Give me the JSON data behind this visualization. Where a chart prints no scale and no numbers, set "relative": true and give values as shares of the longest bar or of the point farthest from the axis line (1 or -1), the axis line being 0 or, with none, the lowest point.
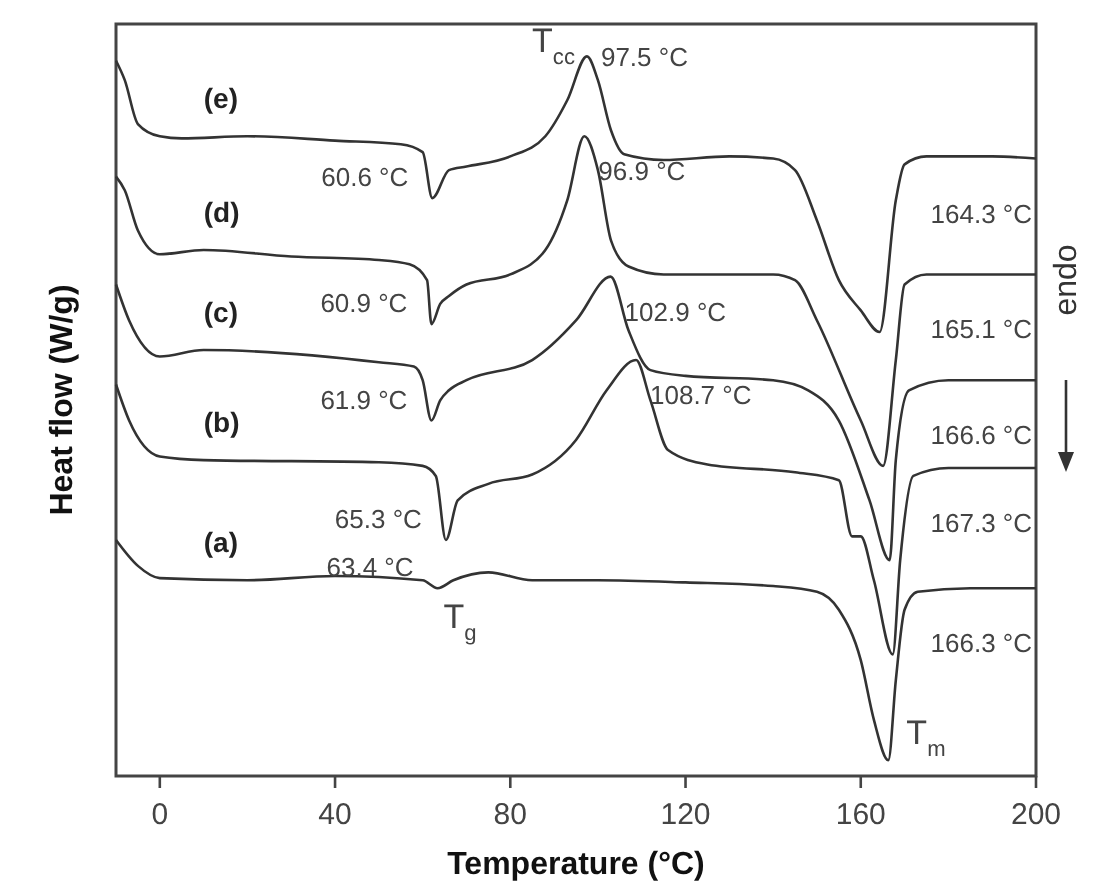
{
  "chart_data": {
    "type": "line",
    "relative": true,
    "xlabel": "Temperature (°C)",
    "ylabel": "Heat flow (W/g)",
    "xlim": [
      -10,
      200
    ],
    "xticks": [
      0,
      40,
      80,
      120,
      160,
      200
    ],
    "series": [
      {
        "name": "(e)",
        "color": "#333333",
        "x": [
          -10,
          -8,
          -5,
          0,
          5,
          20,
          40,
          55,
          60,
          62.2,
          66,
          70,
          80,
          88,
          93,
          97.5,
          100,
          103,
          106,
          115,
          130,
          140,
          145,
          150,
          155,
          160,
          164.3,
          168,
          170,
          175,
          190,
          200
        ],
        "values": [
          0.994,
          0.967,
          0.906,
          0.889,
          0.886,
          0.889,
          0.883,
          0.878,
          0.867,
          0.803,
          0.842,
          0.847,
          0.861,
          0.889,
          0.939,
          1,
          0.967,
          0.897,
          0.864,
          0.856,
          0.861,
          0.858,
          0.842,
          0.772,
          0.689,
          0.647,
          0.617,
          0.8,
          0.85,
          0.861,
          0.861,
          0.858
        ]
      },
      {
        "name": "(d)",
        "color": "#333333",
        "x": [
          -10,
          -8,
          -5,
          0,
          10,
          30,
          50,
          57,
          61,
          62,
          64,
          66,
          70,
          80,
          88,
          93,
          96.9,
          100,
          103,
          107,
          115,
          140,
          145,
          150,
          160,
          165.1,
          168,
          170,
          175,
          200
        ],
        "values": [
          0.833,
          0.814,
          0.758,
          0.725,
          0.731,
          0.722,
          0.717,
          0.711,
          0.689,
          0.628,
          0.656,
          0.667,
          0.683,
          0.697,
          0.731,
          0.8,
          0.889,
          0.842,
          0.744,
          0.708,
          0.697,
          0.697,
          0.689,
          0.633,
          0.494,
          0.431,
          0.578,
          0.683,
          0.697,
          0.697
        ]
      },
      {
        "name": "(c)",
        "color": "#333333",
        "x": [
          -10,
          -7,
          0,
          10,
          50,
          58,
          60,
          62,
          64,
          66,
          70,
          85,
          95,
          102.9,
          107,
          112,
          120,
          140,
          148,
          155,
          162,
          166.6,
          168,
          171,
          180,
          200
        ],
        "values": [
          0.683,
          0.633,
          0.583,
          0.592,
          0.575,
          0.569,
          0.55,
          0.494,
          0.522,
          0.536,
          0.55,
          0.578,
          0.633,
          0.694,
          0.619,
          0.564,
          0.556,
          0.55,
          0.536,
          0.494,
          0.383,
          0.3,
          0.439,
          0.536,
          0.55,
          0.55
        ]
      },
      {
        "name": "(b)",
        "color": "#333333",
        "x": [
          -10,
          -7,
          0,
          10,
          50,
          60,
          63,
          65.3,
          68,
          75,
          85,
          95,
          102,
          108.7,
          112,
          116,
          125,
          145,
          155,
          158,
          160,
          163,
          167.3,
          169,
          172,
          180,
          200
        ],
        "values": [
          0.544,
          0.494,
          0.444,
          0.439,
          0.436,
          0.431,
          0.417,
          0.328,
          0.383,
          0.406,
          0.419,
          0.467,
          0.536,
          0.578,
          0.522,
          0.453,
          0.433,
          0.422,
          0.411,
          0.333,
          0.333,
          0.272,
          0.169,
          0.3,
          0.417,
          0.428,
          0.428
        ]
      },
      {
        "name": "(a)",
        "color": "#333333",
        "x": [
          -10,
          -5,
          0,
          20,
          40,
          60,
          63.4,
          67,
          75,
          85,
          100,
          120,
          140,
          150,
          155,
          160,
          163,
          166.3,
          168,
          170,
          173,
          185,
          200
        ],
        "values": [
          0.328,
          0.292,
          0.275,
          0.272,
          0.278,
          0.272,
          0.261,
          0.272,
          0.283,
          0.272,
          0.272,
          0.269,
          0.264,
          0.256,
          0.231,
          0.161,
          0.078,
          0.022,
          0.133,
          0.231,
          0.256,
          0.261,
          0.261
        ]
      }
    ],
    "annotations": [
      {
        "text": "97.5 °C",
        "x": 97.5,
        "y": 1
      },
      {
        "text": "T$_{cc}$",
        "x": 97.5,
        "y": 1
      },
      {
        "text": "60.6 °C",
        "x": 62.2,
        "y": 0.803
      },
      {
        "text": "96.9 °C",
        "x": 96.9,
        "y": 0.889
      },
      "164.3 °C",
      {
        "text": "60.9 °C",
        "x": 62,
        "y": 0.628
      },
      {
        "text": "102.9 °C",
        "x": 102.9,
        "y": 0.694
      },
      "165.1 °C",
      {
        "text": "61.9 °C",
        "x": 62,
        "y": 0.494
      },
      {
        "text": "108.7 °C",
        "x": 108.7,
        "y": 0.578
      },
      "166.6 °C",
      {
        "text": "65.3 °C",
        "x": 65.3,
        "y": 0.328
      },
      "167.3 °C",
      {
        "text": "63.4 °C",
        "x": 63.4,
        "y": 0.261
      },
      {
        "text": "T$_{g}$",
        "x": 63.4,
        "y": 0.261
      },
      "166.3 °C",
      {
        "text": "T$_{m}$",
        "x": 166.3,
        "y": 0.022
      },
      "endo"
    ]
  }
}
